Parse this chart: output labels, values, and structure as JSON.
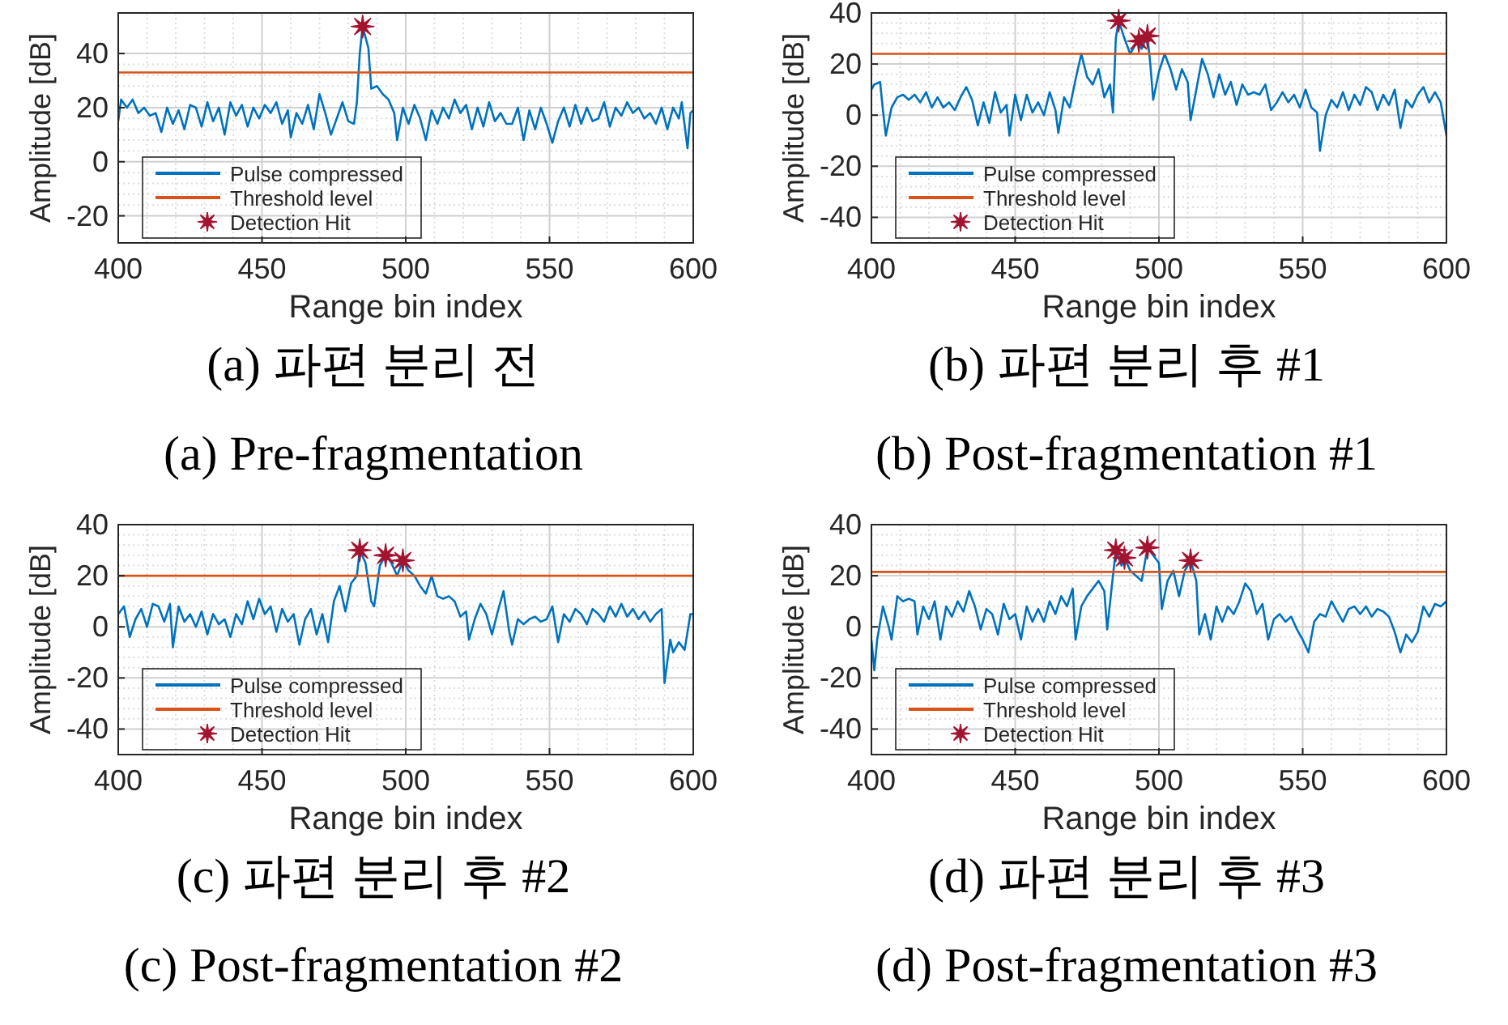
{
  "chart_data": [
    {
      "type": "line",
      "title": "(a) 파편 분리 전",
      "subtitle": "(a) Pre-fragmentation",
      "xlabel": "Range bin index",
      "ylabel": "Amplitude [dB]",
      "xlim": [
        400,
        600
      ],
      "xticks": [
        400,
        450,
        500,
        550,
        600
      ],
      "ylim": [
        -30,
        55
      ],
      "yticks": [
        -20,
        0,
        20,
        40
      ],
      "grid": true,
      "legend": "bottom left",
      "series": [
        {
          "name": "Pulse compressed",
          "color": "#0072bd",
          "x": [
            400,
            401,
            403,
            405,
            407,
            409,
            411,
            413,
            415,
            417,
            419,
            421,
            423,
            425,
            427,
            429,
            431,
            433,
            435,
            437,
            439,
            441,
            443,
            445,
            447,
            449,
            451,
            453,
            455,
            457,
            459,
            460,
            462,
            464,
            466,
            468,
            470,
            472,
            474,
            476,
            478,
            480,
            482,
            483,
            484,
            485,
            487,
            488,
            490,
            492,
            494,
            496,
            497,
            499,
            501,
            503,
            505,
            507,
            509,
            511,
            513,
            515,
            517,
            519,
            521,
            523,
            525,
            527,
            529,
            531,
            533,
            535,
            537,
            539,
            541,
            543,
            545,
            547,
            549,
            551,
            553,
            555,
            557,
            559,
            561,
            563,
            565,
            567,
            569,
            571,
            573,
            575,
            577,
            579,
            581,
            583,
            585,
            587,
            589,
            591,
            593,
            595,
            596,
            598,
            599,
            600
          ],
          "values": [
            15,
            23,
            20,
            23,
            18,
            20,
            17,
            18,
            11,
            20,
            14,
            19,
            12,
            21,
            20,
            13,
            22,
            15,
            20,
            10,
            22,
            17,
            21,
            13,
            20,
            16,
            21,
            18,
            22,
            14,
            19,
            9,
            18,
            14,
            21,
            12,
            25,
            18,
            10,
            16,
            22,
            15,
            14,
            22,
            40,
            50,
            42,
            27,
            28,
            25,
            23,
            18,
            8,
            20,
            14,
            21,
            16,
            8,
            19,
            14,
            20,
            16,
            23,
            18,
            21,
            12,
            20,
            13,
            22,
            15,
            18,
            14,
            14,
            20,
            8,
            19,
            12,
            20,
            14,
            7,
            15,
            20,
            13,
            21,
            14,
            20,
            15,
            16,
            22,
            13,
            20,
            17,
            22,
            18,
            20,
            16,
            18,
            14,
            20,
            12,
            20,
            16,
            22,
            5,
            18,
            19
          ]
        },
        {
          "name": "Threshold level",
          "color": "#d95319",
          "x": [
            400,
            600
          ],
          "values": [
            33,
            33
          ]
        },
        {
          "name": "Detection Hit",
          "type": "scatter",
          "marker": "star",
          "color": "#a2142f",
          "x": [
            485
          ],
          "values": [
            50
          ]
        }
      ]
    },
    {
      "type": "line",
      "title": "(b) 파편 분리 후 #1",
      "subtitle": "(b) Post-fragmentation #1",
      "xlabel": "Range bin index",
      "ylabel": "Amplitude [dB]",
      "xlim": [
        400,
        600
      ],
      "xticks": [
        400,
        450,
        500,
        550,
        600
      ],
      "ylim": [
        -50,
        40
      ],
      "yticks": [
        -40,
        -20,
        0,
        20,
        40
      ],
      "grid": true,
      "legend": "bottom left",
      "series": [
        {
          "name": "Pulse compressed",
          "color": "#0072bd",
          "x": [
            400,
            401,
            403,
            404,
            405,
            407,
            409,
            411,
            413,
            415,
            417,
            419,
            421,
            423,
            425,
            427,
            429,
            431,
            433,
            435,
            437,
            439,
            441,
            443,
            445,
            447,
            448,
            450,
            452,
            454,
            456,
            458,
            460,
            462,
            464,
            465,
            467,
            469,
            471,
            473,
            475,
            477,
            479,
            481,
            483,
            484,
            485,
            486,
            488,
            490,
            492,
            493,
            494,
            496,
            497,
            498,
            500,
            502,
            504,
            506,
            508,
            510,
            511,
            513,
            515,
            517,
            519,
            521,
            523,
            525,
            527,
            529,
            531,
            533,
            535,
            537,
            539,
            541,
            543,
            545,
            547,
            549,
            551,
            553,
            555,
            556,
            558,
            560,
            562,
            564,
            566,
            568,
            570,
            572,
            574,
            576,
            578,
            580,
            582,
            584,
            586,
            588,
            590,
            592,
            594,
            596,
            598,
            600
          ],
          "values": [
            10,
            12,
            13,
            2,
            -8,
            3,
            7,
            8,
            6,
            8,
            5,
            9,
            3,
            7,
            3,
            5,
            2,
            7,
            11,
            6,
            -4,
            5,
            -3,
            9,
            1,
            4,
            -8,
            8,
            -2,
            8,
            1,
            5,
            0,
            9,
            2,
            -7,
            7,
            3,
            14,
            24,
            15,
            12,
            18,
            7,
            12,
            1,
            30,
            37,
            30,
            24,
            28,
            29,
            26,
            31,
            20,
            6,
            17,
            24,
            18,
            10,
            18,
            13,
            -2,
            10,
            22,
            16,
            7,
            16,
            8,
            13,
            4,
            12,
            8,
            9,
            8,
            12,
            2,
            5,
            9,
            5,
            8,
            3,
            10,
            3,
            1,
            -14,
            0,
            6,
            3,
            9,
            2,
            8,
            4,
            11,
            9,
            2,
            8,
            4,
            10,
            -5,
            6,
            3,
            8,
            11,
            5,
            9,
            5,
            -8
          ]
        },
        {
          "name": "Threshold level",
          "color": "#d95319",
          "x": [
            400,
            600
          ],
          "values": [
            24,
            24
          ]
        },
        {
          "name": "Detection Hit",
          "type": "scatter",
          "marker": "star",
          "color": "#a2142f",
          "x": [
            486,
            493,
            496
          ],
          "values": [
            37,
            29,
            31
          ]
        }
      ]
    },
    {
      "type": "line",
      "title": "(c) 파편 분리 후 #2",
      "subtitle": "(c) Post-fragmentation #2",
      "xlabel": "Range bin index",
      "ylabel": "Amplitude [dB]",
      "xlim": [
        400,
        600
      ],
      "xticks": [
        400,
        450,
        500,
        550,
        600
      ],
      "ylim": [
        -50,
        40
      ],
      "yticks": [
        -40,
        -20,
        0,
        20,
        40
      ],
      "grid": true,
      "legend": "bottom left",
      "series": [
        {
          "name": "Pulse compressed",
          "color": "#0072bd",
          "x": [
            400,
            402,
            404,
            406,
            408,
            410,
            412,
            414,
            416,
            418,
            419,
            421,
            423,
            425,
            427,
            429,
            431,
            433,
            435,
            437,
            439,
            441,
            443,
            445,
            447,
            449,
            451,
            453,
            455,
            457,
            459,
            461,
            463,
            465,
            467,
            469,
            471,
            473,
            475,
            477,
            479,
            481,
            483,
            484,
            486,
            488,
            489,
            491,
            493,
            495,
            497,
            499,
            501,
            503,
            505,
            507,
            509,
            511,
            513,
            515,
            517,
            519,
            521,
            522,
            524,
            526,
            528,
            530,
            532,
            534,
            536,
            537,
            539,
            541,
            543,
            545,
            547,
            549,
            551,
            553,
            555,
            557,
            559,
            561,
            563,
            565,
            567,
            569,
            571,
            573,
            575,
            577,
            579,
            581,
            583,
            585,
            587,
            589,
            590,
            592,
            593,
            595,
            597,
            599,
            600
          ],
          "values": [
            5,
            8,
            -4,
            3,
            7,
            0,
            9,
            8,
            2,
            9,
            -8,
            8,
            2,
            5,
            0,
            6,
            -3,
            5,
            1,
            3,
            -4,
            5,
            1,
            10,
            3,
            11,
            5,
            8,
            -2,
            7,
            2,
            5,
            -7,
            3,
            7,
            -3,
            5,
            -6,
            10,
            16,
            6,
            17,
            20,
            30,
            25,
            10,
            8,
            24,
            28,
            25,
            20,
            26,
            22,
            20,
            16,
            13,
            20,
            12,
            11,
            12,
            10,
            4,
            6,
            -5,
            3,
            9,
            5,
            -3,
            6,
            14,
            -2,
            -7,
            3,
            1,
            3,
            4,
            2,
            3,
            8,
            -6,
            5,
            2,
            7,
            5,
            1,
            7,
            5,
            2,
            8,
            4,
            9,
            4,
            7,
            3,
            6,
            2,
            5,
            7,
            -22,
            -5,
            -10,
            -6,
            -9,
            5,
            5
          ]
        },
        {
          "name": "Threshold level",
          "color": "#d95319",
          "x": [
            400,
            600
          ],
          "values": [
            20,
            20
          ]
        },
        {
          "name": "Detection Hit",
          "type": "scatter",
          "marker": "star",
          "color": "#a2142f",
          "x": [
            484,
            493,
            499
          ],
          "values": [
            30,
            28,
            26
          ]
        }
      ]
    },
    {
      "type": "line",
      "title": "(d) 파편 분리 후 #3",
      "subtitle": "(d) Post-fragmentation #3",
      "xlabel": "Range bin index",
      "ylabel": "Amplitude [dB]",
      "xlim": [
        400,
        600
      ],
      "xticks": [
        400,
        450,
        500,
        550,
        600
      ],
      "ylim": [
        -50,
        40
      ],
      "yticks": [
        -40,
        -20,
        0,
        20,
        40
      ],
      "grid": true,
      "legend": "bottom left",
      "series": [
        {
          "name": "Pulse compressed",
          "color": "#0072bd",
          "x": [
            400,
            401,
            402,
            404,
            406,
            407,
            409,
            411,
            413,
            415,
            416,
            418,
            420,
            422,
            424,
            426,
            428,
            430,
            432,
            434,
            436,
            438,
            440,
            442,
            444,
            446,
            448,
            450,
            452,
            454,
            456,
            458,
            460,
            462,
            464,
            466,
            468,
            470,
            471,
            473,
            475,
            477,
            479,
            481,
            482,
            484,
            485,
            487,
            488,
            490,
            492,
            494,
            496,
            498,
            500,
            501,
            503,
            505,
            507,
            509,
            511,
            513,
            514,
            516,
            518,
            520,
            522,
            524,
            526,
            528,
            530,
            532,
            534,
            536,
            538,
            540,
            542,
            544,
            546,
            548,
            550,
            552,
            554,
            556,
            558,
            560,
            562,
            564,
            566,
            568,
            570,
            572,
            574,
            576,
            578,
            580,
            582,
            584,
            586,
            588,
            590,
            592,
            594,
            596,
            598,
            600
          ],
          "values": [
            -5,
            -17,
            -5,
            8,
            0,
            -5,
            12,
            10,
            11,
            10,
            -3,
            8,
            3,
            10,
            -5,
            8,
            4,
            10,
            6,
            14,
            8,
            -1,
            7,
            5,
            -3,
            9,
            3,
            5,
            -5,
            8,
            2,
            7,
            2,
            10,
            5,
            12,
            8,
            15,
            -5,
            8,
            12,
            15,
            18,
            14,
            -1,
            20,
            30,
            24,
            27,
            22,
            20,
            18,
            31,
            28,
            25,
            7,
            18,
            22,
            12,
            22,
            26,
            18,
            -3,
            5,
            -5,
            8,
            2,
            8,
            5,
            10,
            17,
            14,
            5,
            9,
            -5,
            3,
            5,
            2,
            4,
            -1,
            -5,
            -10,
            2,
            5,
            4,
            10,
            6,
            2,
            7,
            8,
            5,
            8,
            4,
            7,
            6,
            4,
            -2,
            -10,
            -3,
            -6,
            -2,
            8,
            4,
            9,
            8,
            10
          ]
        },
        {
          "name": "Threshold level",
          "color": "#d95319",
          "x": [
            400,
            600
          ],
          "values": [
            21.5,
            21.5
          ]
        },
        {
          "name": "Detection Hit",
          "type": "scatter",
          "marker": "star",
          "color": "#a2142f",
          "x": [
            485,
            488,
            496,
            511
          ],
          "values": [
            30,
            27,
            31,
            26
          ]
        }
      ]
    }
  ]
}
